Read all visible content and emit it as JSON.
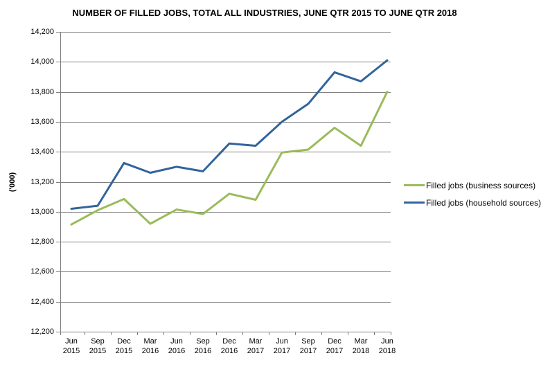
{
  "title": "NUMBER OF FILLED JOBS, TOTAL ALL INDUSTRIES, JUNE QTR 2015 TO JUNE QTR 2018",
  "y_axis_title": "('000)",
  "colors": {
    "gridline": "#7F7F7F",
    "axis": "#7F7F7F",
    "text": "#000000",
    "background": "#FFFFFF"
  },
  "chart_data": {
    "type": "line",
    "title": "NUMBER OF FILLED JOBS, TOTAL ALL INDUSTRIES, JUNE QTR 2015 TO JUNE QTR 2018",
    "xlabel": "",
    "ylabel": "('000)",
    "ylim": [
      12200,
      14200
    ],
    "ytick_step": 200,
    "grid": true,
    "legend_position": "right",
    "categories": [
      "Jun 2015",
      "Sep 2015",
      "Dec 2015",
      "Mar 2016",
      "Jun 2016",
      "Sep 2016",
      "Dec 2016",
      "Mar 2017",
      "Jun 2017",
      "Sep 2017",
      "Dec 2017",
      "Mar 2018",
      "Jun 2018"
    ],
    "series": [
      {
        "name": "Filled jobs (business sources)",
        "color": "#9BBB59",
        "values": [
          12915,
          13010,
          13085,
          12920,
          13015,
          12985,
          13120,
          13080,
          13395,
          13415,
          13560,
          13440,
          13800
        ]
      },
      {
        "name": "Filled jobs (household sources)",
        "color": "#31649B",
        "values": [
          13020,
          13040,
          13325,
          13260,
          13300,
          13270,
          13455,
          13440,
          13600,
          13720,
          13930,
          13870,
          14010
        ]
      }
    ]
  }
}
